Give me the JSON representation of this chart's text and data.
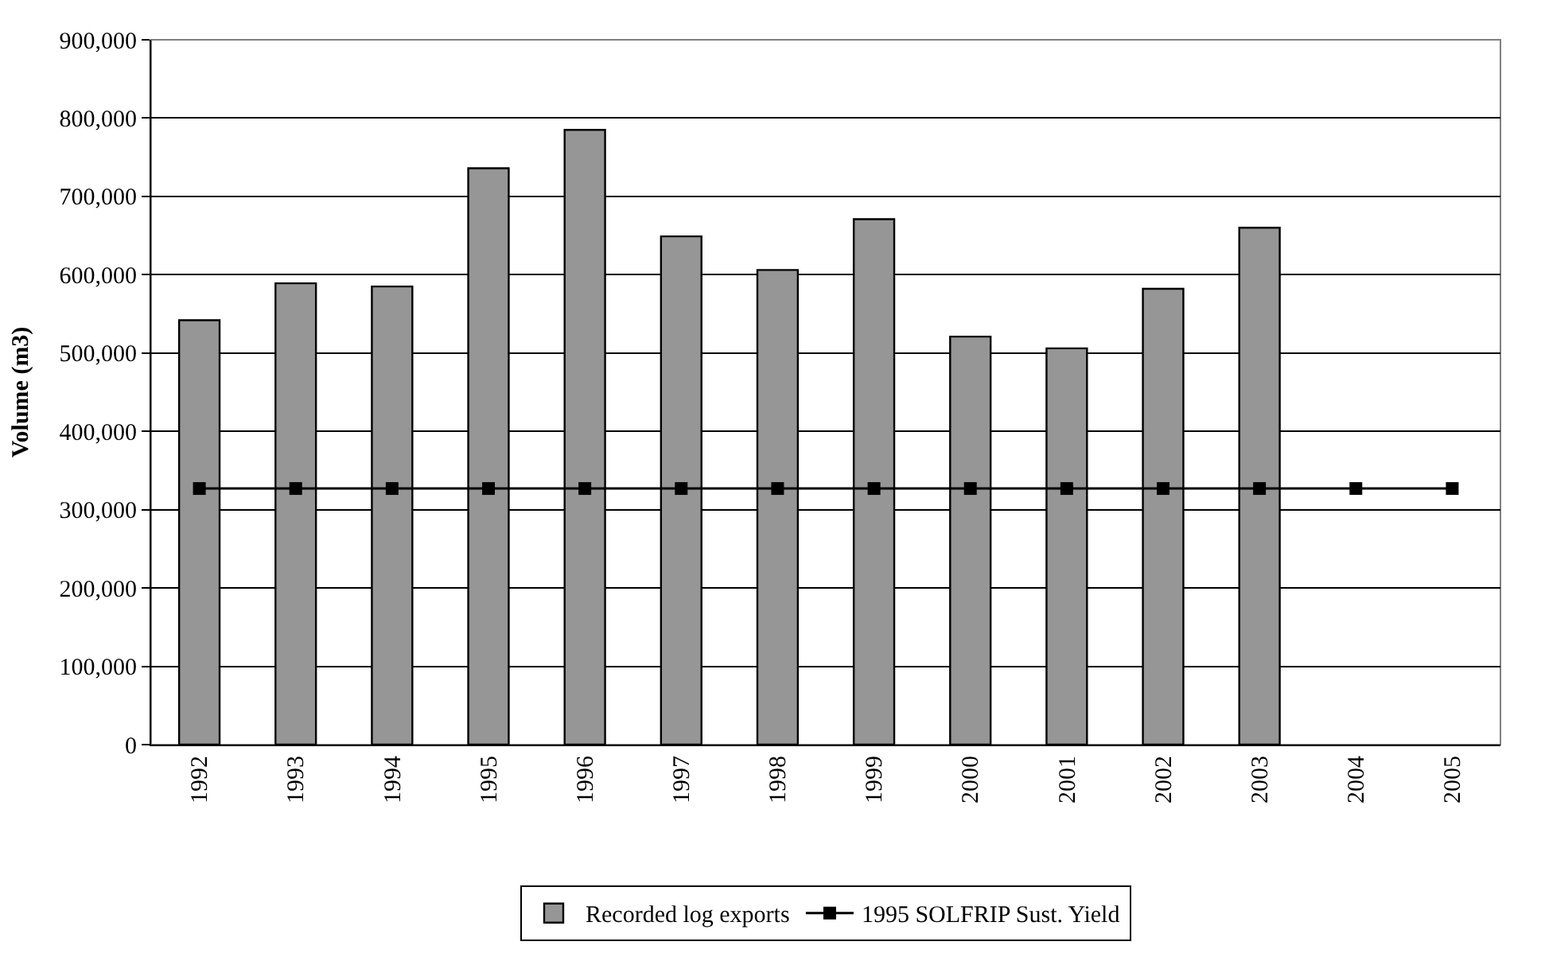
{
  "chart_data": {
    "type": "bar",
    "ylabel": "Volume (m3)",
    "categories": [
      "1992",
      "1993",
      "1994",
      "1995",
      "1996",
      "1997",
      "1998",
      "1999",
      "2000",
      "2001",
      "2002",
      "2003",
      "2004",
      "2005"
    ],
    "series": [
      {
        "name": "Recorded log exports",
        "color": "#969696",
        "values": [
          542000,
          589000,
          585000,
          736000,
          785000,
          649000,
          606000,
          671000,
          521000,
          506000,
          582000,
          660000,
          null,
          null
        ]
      },
      {
        "name": "1995 SOLFRIP Sust. Yield",
        "type": "line",
        "color": "#000000",
        "marker": "square",
        "line_style": "solid",
        "values": [
          327000,
          327000,
          327000,
          327000,
          327000,
          327000,
          327000,
          327000,
          327000,
          327000,
          327000,
          327000,
          327000,
          327000
        ]
      }
    ],
    "ylim": [
      0,
      900000
    ],
    "yticks": [
      {
        "value": 0,
        "label": "0"
      },
      {
        "value": 100000,
        "label": "100,000"
      },
      {
        "value": 200000,
        "label": "200,000"
      },
      {
        "value": 300000,
        "label": "300,000"
      },
      {
        "value": 400000,
        "label": "400,000"
      },
      {
        "value": 500000,
        "label": "500,000"
      },
      {
        "value": 600000,
        "label": "600,000"
      },
      {
        "value": 700000,
        "label": "700,000"
      },
      {
        "value": 800000,
        "label": "800,000"
      },
      {
        "value": 900000,
        "label": "900,000"
      }
    ],
    "grid": "y",
    "legend": "bottom"
  }
}
